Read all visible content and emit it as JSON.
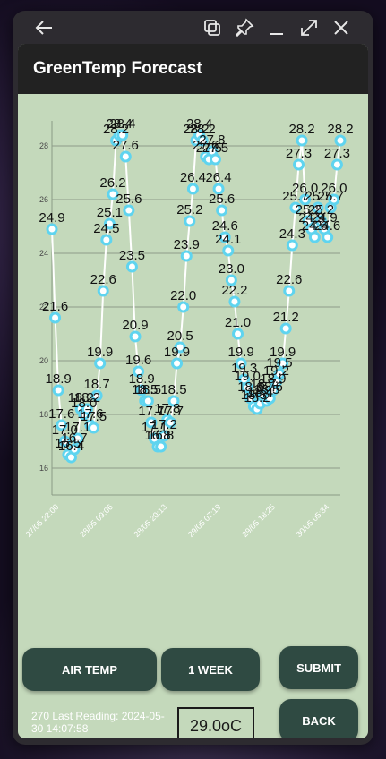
{
  "window": {
    "controls": [
      "back-arrow-icon",
      "tab-switch-icon",
      "pin-icon",
      "minimize-icon",
      "maximize-icon",
      "close-icon"
    ]
  },
  "app": {
    "title": "GreenTemp Forecast"
  },
  "chart_data": {
    "type": "line",
    "title": "",
    "xlabel": "",
    "ylabel": "",
    "ylim": [
      15,
      28.6
    ],
    "yticks": [
      16,
      18,
      20,
      22,
      24,
      26,
      28
    ],
    "xticks": [
      "27/05 22:00",
      "28/05 09:06",
      "28/05 20:13",
      "29/05 07:19",
      "29/05 18:25",
      "30/05 05:34"
    ],
    "grid": true,
    "series": [
      {
        "x": [
          0,
          0.07,
          0.14,
          0.21,
          0.28,
          0.35,
          0.42,
          0.49,
          0.56,
          0.63,
          0.7,
          0.77,
          0.84,
          0.91,
          0.98,
          1.05,
          1.12,
          1.19,
          1.26,
          1.33,
          1.4,
          1.47,
          1.54,
          1.61,
          1.68,
          1.75,
          1.82,
          1.89,
          1.96,
          2.03,
          2.1,
          2.17,
          2.24,
          2.31,
          2.38,
          2.45,
          2.52,
          2.59,
          2.66,
          2.73,
          2.8,
          2.87,
          2.94,
          3.01,
          3.08,
          3.15,
          3.22,
          3.29,
          3.36,
          3.43,
          3.5,
          3.57,
          3.64,
          3.71,
          3.78,
          3.85,
          3.92,
          3.99,
          4.06,
          4.13,
          4.2,
          4.27,
          4.34,
          4.41,
          4.48,
          4.55,
          4.62,
          4.69,
          4.76,
          4.83,
          4.9,
          4.97,
          5.04,
          5.11,
          5.18,
          5.25,
          5.32,
          5.39,
          5.46,
          5.53,
          5.6,
          5.67,
          5.74,
          5.81,
          5.88,
          5.95,
          6.02,
          6.09,
          6.16,
          6.23,
          6.3
        ],
        "values": [
          24.9,
          21.6,
          18.9,
          17.6,
          17.0,
          16.5,
          16.4,
          16.7,
          17.1,
          18.2,
          18.0,
          18.2,
          17.6,
          17.5,
          18.7,
          19.9,
          22.6,
          24.5,
          25.1,
          26.2,
          28.2,
          28.4,
          28.4,
          27.6,
          25.6,
          23.5,
          20.9,
          19.6,
          18.9,
          18.5,
          18.5,
          17.7,
          17.1,
          16.8,
          16.8,
          17.2,
          17.8,
          17.7,
          18.5,
          19.9,
          20.5,
          22.0,
          23.9,
          25.2,
          26.4,
          28.2,
          28.4,
          28.2,
          27.6,
          27.5,
          27.8,
          27.5,
          26.4,
          25.6,
          24.6,
          24.1,
          23.0,
          22.2,
          21.0,
          19.9,
          19.3,
          19.0,
          18.6,
          18.3,
          18.2,
          18.4,
          18.7,
          18.5,
          18.6,
          18.9,
          19.2,
          19.5,
          19.9,
          21.2,
          22.6,
          24.3,
          25.7,
          27.3,
          28.2,
          26.0,
          25.2,
          24.9,
          24.6,
          25.7,
          25.2,
          24.9,
          24.6,
          25.7,
          26.0,
          27.3,
          28.2
        ]
      }
    ]
  },
  "buttons": {
    "air_temp": "AIR TEMP",
    "one_week": "1 WEEK",
    "submit": "SUBMIT",
    "back": "BACK"
  },
  "status": {
    "last_reading": "270 Last Reading: 2024-05-30 14:07:58",
    "current_temp": "29.0oC"
  }
}
